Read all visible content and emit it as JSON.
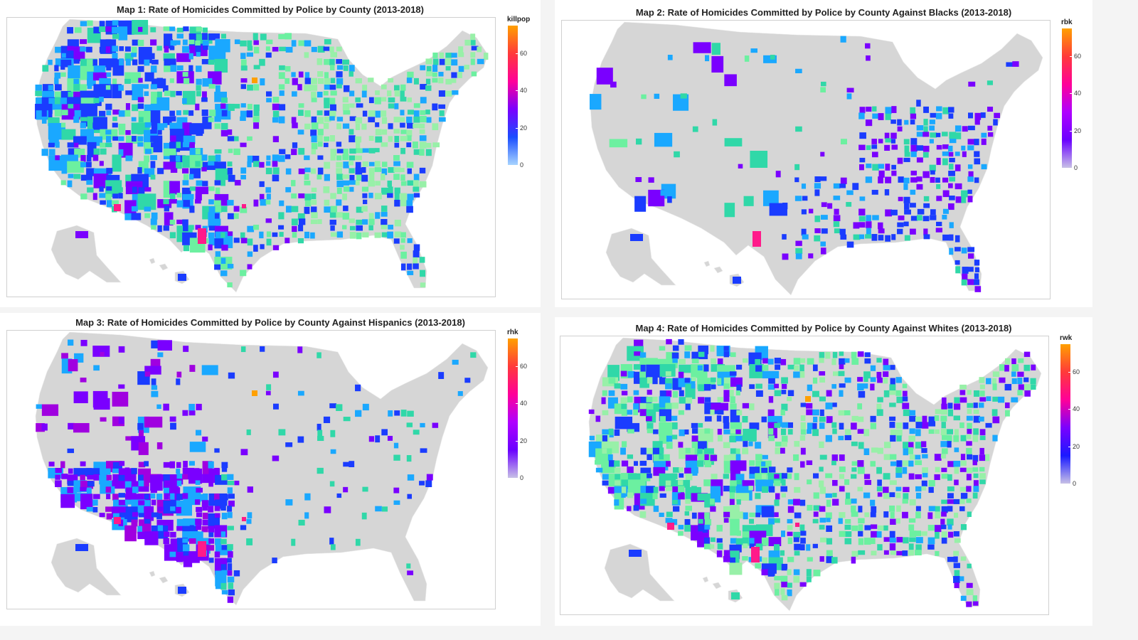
{
  "maps": [
    {
      "title": "Map 1: Rate of Homicides Committed by Police by County (2013-2018)",
      "legend_title": "killpop",
      "ticks": [
        "0",
        "20",
        "40",
        "60"
      ],
      "tick_values": [
        0,
        20,
        40,
        60
      ],
      "scale_max": 75,
      "gradient": [
        "#a7d4ff",
        "#1a4dff",
        "#7a00ff",
        "#ff0099",
        "#ff3a3a",
        "#ffa000"
      ],
      "coverage": "dense"
    },
    {
      "title": "Map 2: Rate of Homicides Committed by Police by County Against Blacks (2013-2018)",
      "legend_title": "rbk",
      "ticks": [
        "0",
        "20",
        "40",
        "60"
      ],
      "tick_values": [
        0,
        20,
        40,
        60
      ],
      "scale_max": 75,
      "gradient": [
        "#c7c0e6",
        "#6a00ff",
        "#b000ff",
        "#ff0099",
        "#ff3a3a",
        "#ffa000"
      ],
      "coverage": "black"
    },
    {
      "title": "Map 3: Rate of Homicides Committed by Police by County Against Hispanics (2013-2018)",
      "legend_title": "rhk",
      "ticks": [
        "0",
        "20",
        "40",
        "60"
      ],
      "tick_values": [
        0,
        20,
        40,
        60
      ],
      "scale_max": 75,
      "gradient": [
        "#c7c0e6",
        "#6a00ff",
        "#b000ff",
        "#ff0099",
        "#ff3a3a",
        "#ffa000"
      ],
      "coverage": "hispanic"
    },
    {
      "title": "Map 4: Rate of Homicides Committed by Police by County Against Whites (2013-2018)",
      "legend_title": "rwk",
      "ticks": [
        "0",
        "20",
        "40",
        "60"
      ],
      "tick_values": [
        0,
        20,
        40,
        60
      ],
      "scale_max": 75,
      "gradient": [
        "#c7c0e6",
        "#1a1aff",
        "#7a00ff",
        "#ff0099",
        "#ff3a3a",
        "#ffa000"
      ],
      "coverage": "white"
    }
  ],
  "colors": {
    "land": "#d6d6d6",
    "county_low": "#98f0a8",
    "county_light_green": "#6cf0a0",
    "county_teal": "#30d8a8",
    "county_sky": "#1aa8ff",
    "county_blue": "#1a3cff",
    "county_violet": "#7a00ff",
    "county_purple": "#a000e0",
    "county_pink": "#ff1a8a",
    "county_orange": "#ffa000"
  }
}
